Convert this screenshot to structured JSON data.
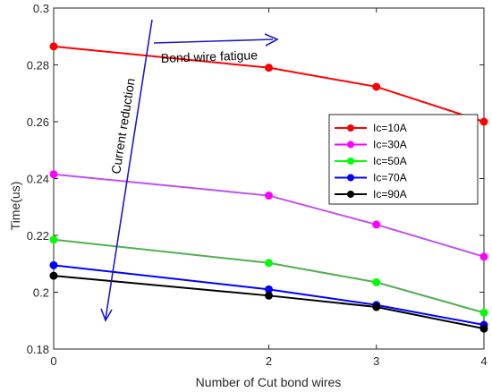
{
  "chart_data": {
    "type": "line",
    "xlabel": "Number of Cut bond wires",
    "ylabel": "Time(us)",
    "x": [
      0,
      2,
      3,
      4
    ],
    "x_tick_labels": [
      "0",
      "2",
      "3",
      "4"
    ],
    "ylim": [
      0.18,
      0.3
    ],
    "y_ticks": [
      0.18,
      0.2,
      0.22,
      0.24,
      0.26,
      0.28,
      0.3
    ],
    "y_tick_labels": [
      "0.18",
      "0.2",
      "0.22",
      "0.24",
      "0.26",
      "0.28",
      "0.3"
    ],
    "grid": false,
    "legend_position": "right",
    "series": [
      {
        "name": "Ic=10A",
        "color": "#ff0000",
        "values": [
          0.2865,
          0.279,
          0.2723,
          0.26
        ]
      },
      {
        "name": "Ic=30A",
        "color": "#ff00ff",
        "line_color": "#c050f0",
        "values": [
          0.2415,
          0.234,
          0.2238,
          0.2125
        ]
      },
      {
        "name": "Ic=50A",
        "color": "#00ff00",
        "line_color": "#50b050",
        "values": [
          0.2185,
          0.2103,
          0.2035,
          0.1928
        ]
      },
      {
        "name": "Ic=70A",
        "color": "#0000ff",
        "values": [
          0.2095,
          0.201,
          0.1955,
          0.1885
        ]
      },
      {
        "name": "Ic=90A",
        "color": "#000000",
        "values": [
          0.2058,
          0.1988,
          0.1948,
          0.1872
        ]
      }
    ],
    "annotations": {
      "horizontal_arrow_label": "Bond wire fatigue",
      "vertical_arrow_label": "Current reduction",
      "arrow_color": "#1a1acc"
    }
  }
}
